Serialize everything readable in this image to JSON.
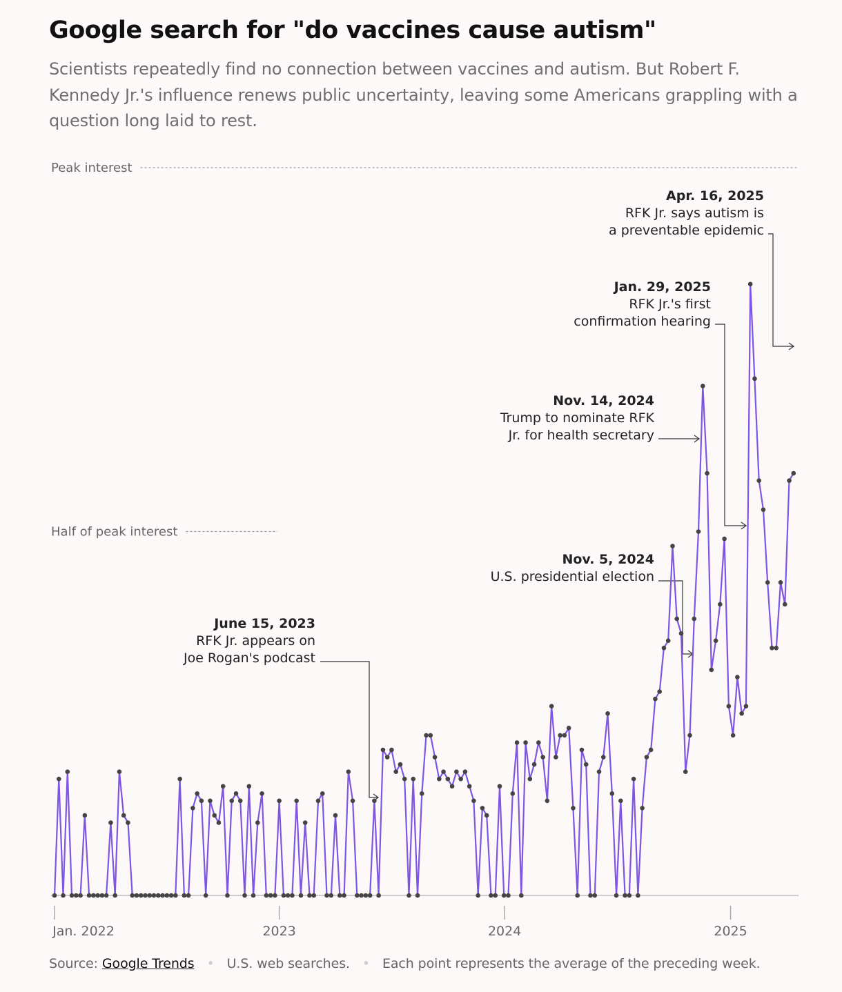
{
  "title": "Google search for \"do vaccines cause autism\"",
  "subtitle": "Scientists repeatedly find no connection between vaccines and autism. But Robert F. Kennedy Jr.'s influence renews public uncertainty, leaving some Americans grappling with a question long laid to rest.",
  "footer": {
    "source_label": "Source:",
    "source_link": "Google Trends",
    "note1": "U.S. web searches.",
    "note2": "Each point represents the average of the preceding week."
  },
  "colors": {
    "line": "#7f55e3",
    "point": "#444444",
    "baseline": "#bdbdbd",
    "reference": "#9a9a9a",
    "annotation": "#222222"
  },
  "chart_data": {
    "type": "line",
    "y_unit": "relative search interest (peak = 100)",
    "ylim": [
      0,
      100
    ],
    "reference_lines": [
      {
        "label": "Peak interest",
        "value": 100
      },
      {
        "label": "Half of peak interest",
        "value": 50
      }
    ],
    "x_ticks": [
      {
        "label": "Jan. 2022",
        "value": "2022-01-02"
      },
      {
        "label": "2023",
        "value": "2023-01-01"
      },
      {
        "label": "2024",
        "value": "2024-01-01"
      },
      {
        "label": "2025",
        "value": "2025-01-01"
      }
    ],
    "x_start": "2022-01-02",
    "x_step_days": 7,
    "values": [
      0,
      16,
      0,
      17,
      0,
      0,
      0,
      11,
      0,
      0,
      0,
      0,
      0,
      10,
      0,
      17,
      11,
      10,
      0,
      0,
      0,
      0,
      0,
      0,
      0,
      0,
      0,
      0,
      0,
      16,
      0,
      0,
      12,
      14,
      13,
      0,
      13,
      11,
      10,
      15,
      0,
      13,
      14,
      13,
      0,
      15,
      0,
      10,
      14,
      0,
      0,
      0,
      13,
      0,
      0,
      0,
      13,
      0,
      10,
      0,
      0,
      13,
      14,
      0,
      0,
      11,
      0,
      0,
      17,
      13,
      0,
      0,
      0,
      0,
      13,
      0,
      20,
      19,
      20,
      17,
      18,
      16,
      0,
      16,
      0,
      14,
      22,
      22,
      19,
      16,
      17,
      16,
      15,
      17,
      16,
      17,
      15,
      13,
      0,
      12,
      11,
      0,
      0,
      15,
      0,
      0,
      14,
      21,
      0,
      21,
      16,
      18,
      21,
      19,
      13,
      26,
      19,
      22,
      22,
      23,
      12,
      0,
      20,
      18,
      0,
      0,
      17,
      19,
      25,
      14,
      0,
      13,
      0,
      0,
      16,
      0,
      12,
      19,
      20,
      27,
      28,
      34,
      35,
      48,
      38,
      36,
      17,
      22,
      38,
      50,
      70,
      58,
      31,
      35,
      40,
      49,
      26,
      22,
      30,
      25,
      26,
      84,
      71,
      57,
      53,
      43,
      34,
      34,
      43,
      40,
      57,
      58
    ],
    "annotations": [
      {
        "date_label": "June 15, 2023",
        "text": [
          "RFK Jr. appears on",
          "Joe Rogan's podcast"
        ]
      },
      {
        "date_label": "Nov. 5, 2024",
        "text": [
          "U.S. presidential election"
        ]
      },
      {
        "date_label": "Nov. 14, 2024",
        "text": [
          "Trump to nominate RFK",
          "Jr. for health secretary"
        ]
      },
      {
        "date_label": "Jan. 29, 2025",
        "text": [
          "RFK Jr.'s first",
          "confirmation hearing"
        ]
      },
      {
        "date_label": "Apr. 16, 2025",
        "text": [
          "RFK Jr. says autism is",
          "a preventable epidemic"
        ]
      }
    ]
  }
}
